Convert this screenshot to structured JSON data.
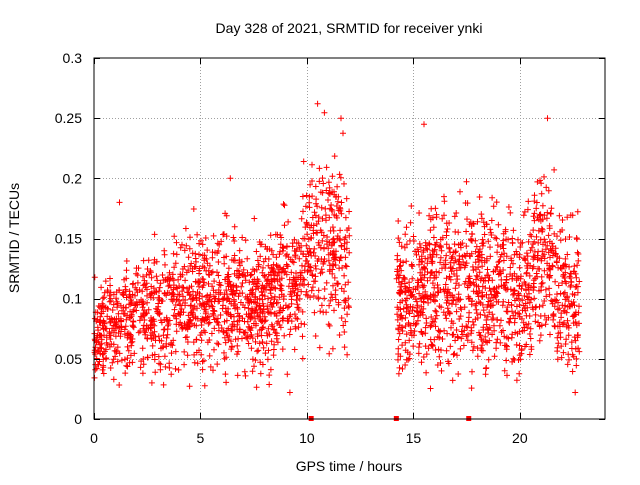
{
  "chart_data": {
    "type": "scatter",
    "title": "Day 328 of 2021, SRMTID for receiver ynki",
    "xlabel": "GPS time / hours",
    "ylabel": "SRMTID / TECUs",
    "xlim": [
      0,
      24
    ],
    "ylim": [
      0,
      0.3
    ],
    "xticks": [
      0,
      5,
      10,
      15,
      20
    ],
    "xtick_labels": [
      "0",
      "5",
      "10",
      "15",
      "20"
    ],
    "yticks": [
      0,
      0.05,
      0.1,
      0.15,
      0.2,
      0.25,
      0.3
    ],
    "ytick_labels": [
      "0",
      "0.05",
      "0.1",
      "0.15",
      "0.2",
      "0.25",
      "0.3"
    ],
    "grid": true,
    "marker": "+",
    "marker_color": "#ff0000",
    "baseline_markers_x": [
      10.2,
      14.2,
      17.6
    ],
    "series": [
      {
        "name": "SRMTID",
        "segments": [
          {
            "x_start": 0.0,
            "x_end": 12.0,
            "count": 1500
          },
          {
            "x_start": 14.2,
            "x_end": 22.8,
            "count": 1150
          }
        ],
        "approx_profile": [
          [
            0,
            0.07,
            0.02
          ],
          [
            2,
            0.09,
            0.025
          ],
          [
            4,
            0.095,
            0.03
          ],
          [
            6,
            0.1,
            0.03
          ],
          [
            8,
            0.095,
            0.03
          ],
          [
            9.5,
            0.12,
            0.035
          ],
          [
            10.5,
            0.15,
            0.04
          ],
          [
            11.5,
            0.14,
            0.04
          ],
          [
            12,
            0.12,
            0.04
          ],
          [
            14.2,
            0.1,
            0.03
          ],
          [
            16,
            0.11,
            0.035
          ],
          [
            18,
            0.11,
            0.035
          ],
          [
            20,
            0.1,
            0.035
          ],
          [
            21,
            0.14,
            0.04
          ],
          [
            22,
            0.1,
            0.035
          ],
          [
            22.8,
            0.1,
            0.035
          ]
        ],
        "notable_points": [
          {
            "x": 10.5,
            "y": 0.262
          },
          {
            "x": 11.6,
            "y": 0.25
          },
          {
            "x": 21.3,
            "y": 0.25
          },
          {
            "x": 15.5,
            "y": 0.245
          },
          {
            "x": 6.4,
            "y": 0.2
          },
          {
            "x": 1.2,
            "y": 0.18
          },
          {
            "x": 9.2,
            "y": 0.022
          },
          {
            "x": 22.6,
            "y": 0.022
          }
        ]
      }
    ]
  }
}
